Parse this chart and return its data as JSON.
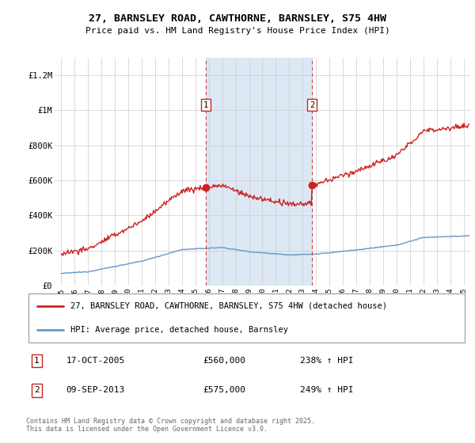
{
  "title": "27, BARNSLEY ROAD, CAWTHORNE, BARNSLEY, S75 4HW",
  "subtitle": "Price paid vs. HM Land Registry's House Price Index (HPI)",
  "legend_line1": "27, BARNSLEY ROAD, CAWTHORNE, BARNSLEY, S75 4HW (detached house)",
  "legend_line2": "HPI: Average price, detached house, Barnsley",
  "annotation1_label": "1",
  "annotation1_date": "17-OCT-2005",
  "annotation1_price": 560000,
  "annotation1_hpi": "238% ↑ HPI",
  "annotation2_label": "2",
  "annotation2_date": "09-SEP-2013",
  "annotation2_price": 575000,
  "annotation2_hpi": "249% ↑ HPI",
  "footnote": "Contains HM Land Registry data © Crown copyright and database right 2025.\nThis data is licensed under the Open Government Licence v3.0.",
  "sale1_x": 2005.79,
  "sale1_y": 560000,
  "sale2_x": 2013.69,
  "sale2_y": 575000,
  "vline1_x": 2005.79,
  "vline2_x": 2013.69,
  "hpi_color": "#6699cc",
  "price_color": "#cc2222",
  "vline_color": "#cc2222",
  "shade_color": "#dde8f5",
  "plot_bg": "#ffffff",
  "grid_color": "#cccccc",
  "ylim": [
    0,
    1300000
  ],
  "xlim_start": 1994.5,
  "xlim_end": 2025.5,
  "yticks": [
    0,
    200000,
    400000,
    600000,
    800000,
    1000000,
    1200000
  ],
  "ytick_labels": [
    "£0",
    "£200K",
    "£400K",
    "£600K",
    "£800K",
    "£1M",
    "£1.2M"
  ],
  "xticks": [
    1995,
    1996,
    1997,
    1998,
    1999,
    2000,
    2001,
    2002,
    2003,
    2004,
    2005,
    2006,
    2007,
    2008,
    2009,
    2010,
    2011,
    2012,
    2013,
    2014,
    2015,
    2016,
    2017,
    2018,
    2019,
    2020,
    2021,
    2022,
    2023,
    2024,
    2025
  ]
}
